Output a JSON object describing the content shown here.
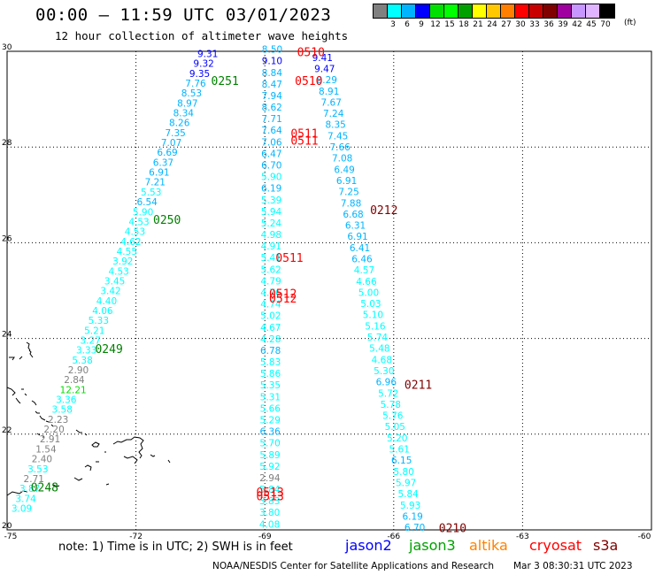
{
  "title": "00:00 – 11:59 UTC 03/01/2023",
  "subtitle": "12 hour collection of altimeter wave heights",
  "legend": {
    "unit": "(ft)",
    "colors": [
      "#808080",
      "#00ffff",
      "#00b4ff",
      "#0000ff",
      "#00e000",
      "#00ff00",
      "#00a000",
      "#ffff00",
      "#ffc800",
      "#ff8000",
      "#ff0000",
      "#c80000",
      "#800000",
      "#a000a0",
      "#c896ff",
      "#e0b4ff",
      "#000000"
    ],
    "ticks": [
      "3",
      "6",
      "9",
      "12",
      "15",
      "18",
      "21",
      "24",
      "27",
      "30",
      "33",
      "36",
      "39",
      "42",
      "45",
      "70"
    ]
  },
  "axes": {
    "x_labels": [
      "-75",
      "-72",
      "-69",
      "-66",
      "-63",
      "-60"
    ],
    "y_labels": [
      "30",
      "28",
      "26",
      "24",
      "22",
      "20"
    ]
  },
  "footer": {
    "note": "note: 1) Time is in UTC; 2) SWH is in feet",
    "satellites": [
      {
        "name": "jason2",
        "color": "#0000ff"
      },
      {
        "name": "jason3",
        "color": "#00a000"
      },
      {
        "name": "altika",
        "color": "#ff8000"
      },
      {
        "name": "cryosat",
        "color": "#ff0000"
      },
      {
        "name": "s3a",
        "color": "#800000"
      }
    ],
    "credit": "NOAA/NESDIS Center for Satellite Applications and Research",
    "timestamp": "Mar  3 08:30:31 UTC 2023"
  },
  "pass_labels": [
    {
      "text": "0510",
      "color": "#ff0000",
      "lon": -68.25,
      "lat": 29.9
    },
    {
      "text": "0510",
      "color": "#ff0000",
      "lon": -68.3,
      "lat": 29.3
    },
    {
      "text": "0511",
      "color": "#ff0000",
      "lon": -68.4,
      "lat": 28.2
    },
    {
      "text": "0511",
      "color": "#ff0000",
      "lon": -68.4,
      "lat": 28.05
    },
    {
      "text": "0511",
      "color": "#ff0000",
      "lon": -68.75,
      "lat": 25.6
    },
    {
      "text": "0512",
      "color": "#ff0000",
      "lon": -68.9,
      "lat": 24.85
    },
    {
      "text": "0512",
      "color": "#ff0000",
      "lon": -68.9,
      "lat": 24.75
    },
    {
      "text": "0513",
      "color": "#ff0000",
      "lon": -69.2,
      "lat": 20.7
    },
    {
      "text": "0513",
      "color": "#ff0000",
      "lon": -69.2,
      "lat": 20.62
    },
    {
      "text": "0251",
      "color": "#008000",
      "lon": -70.25,
      "lat": 29.3
    },
    {
      "text": "0250",
      "color": "#008000",
      "lon": -71.6,
      "lat": 26.4
    },
    {
      "text": "0249",
      "color": "#008000",
      "lon": -72.95,
      "lat": 23.7
    },
    {
      "text": "0248",
      "color": "#008000",
      "lon": -74.45,
      "lat": 20.8
    },
    {
      "text": "0212",
      "color": "#800000",
      "lon": -66.55,
      "lat": 26.6
    },
    {
      "text": "0211",
      "color": "#800000",
      "lon": -65.75,
      "lat": 22.95
    },
    {
      "text": "0210",
      "color": "#800000",
      "lon": -64.95,
      "lat": 19.95
    }
  ],
  "track_a": {
    "lat_start": 29.88,
    "lat_end": 20.38,
    "lon_start": -70.57,
    "lon_end": -74.9,
    "values": [
      "9.31",
      "9.32",
      "9.35",
      "7.76",
      "8.53",
      "8.97",
      "8.34",
      "8.26",
      "7.35",
      "7.07",
      "6.69",
      "6.37",
      "6.91",
      "7.21",
      "5.53",
      "6.54",
      "5.90",
      "4.53",
      "4.53",
      "4.62",
      "4.55",
      "3.92",
      "4.53",
      "3.45",
      "3.42",
      "4.40",
      "4.06",
      "5.33",
      "5.21",
      "3.27",
      "3.33",
      "5.38",
      "2.90",
      "2.84",
      "12.21",
      "3.36",
      "3.58",
      "2.23",
      "2.20",
      "2.91",
      "1.54",
      "2.40",
      "3.53",
      "2.71",
      "3.87",
      "3.74",
      "3.09"
    ]
  },
  "track_b": {
    "lat_start": 29.97,
    "lat_end": 20.05,
    "lon_start": -69.07,
    "lon_end": -69.13,
    "values": [
      "8.50",
      "9.10",
      "8.84",
      "8.47",
      "7.94",
      "8.62",
      "7.71",
      "7.64",
      "7.06",
      "6.47",
      "6.70",
      "5.90",
      "6.19",
      "5.39",
      "5.94",
      "5.24",
      "4.98",
      "4.91",
      "5.41",
      "5.62",
      "4.79",
      "4.76",
      "4.74",
      "5.02",
      "4.67",
      "4.28",
      "6.78",
      "5.83",
      "5.86",
      "5.35",
      "5.31",
      "5.66",
      "5.29",
      "6.36",
      "5.70",
      "5.89",
      "5.92",
      "2.94",
      "5.84",
      "3.83",
      "3.80",
      "4.08"
    ]
  },
  "track_c": {
    "lat_start": 29.8,
    "lat_end": 19.98,
    "lon_start": -67.9,
    "lon_end": -65.75,
    "values": [
      "9.41",
      "9.47",
      "8.29",
      "8.91",
      "7.67",
      "7.24",
      "8.35",
      "7.45",
      "7.66",
      "7.08",
      "6.49",
      "6.91",
      "7.25",
      "7.88",
      "6.68",
      "6.31",
      "6.91",
      "6.41",
      "6.46",
      "4.57",
      "4.66",
      "5.00",
      "5.03",
      "5.10",
      "5.16",
      "5.74",
      "5.48",
      "4.68",
      "5.30",
      "6.96",
      "5.72",
      "5.78",
      "5.76",
      "5.05",
      "5.20",
      "5.61",
      "6.15",
      "5.80",
      "5.97",
      "5.84",
      "5.93",
      "6.19",
      "6.70"
    ]
  }
}
